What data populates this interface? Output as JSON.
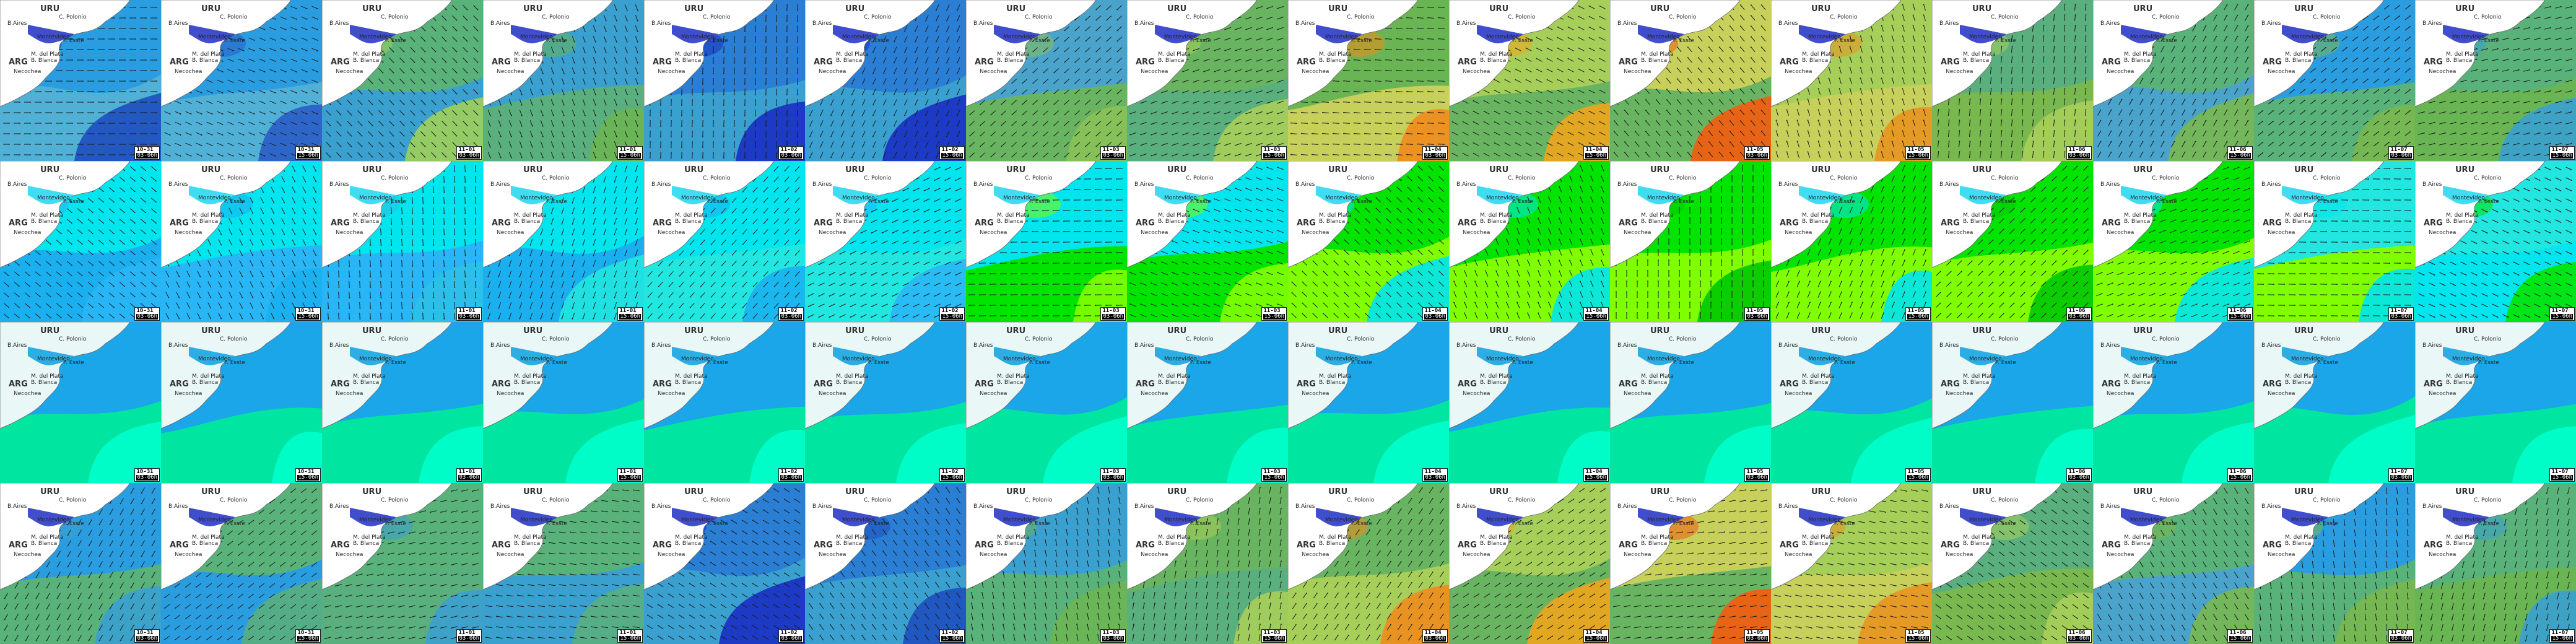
{
  "map": {
    "region_labels": {
      "country_north": "URU",
      "country_south": "ARG",
      "place_1": "C. Polonio",
      "place_2": "B.Aires",
      "place_3": "Montevideo",
      "place_4": "P. Esste",
      "place_5": "M. del Plata",
      "place_6": "Necochea",
      "place_7": "B. Blanca"
    },
    "time_labels": [
      {
        "date": "10-31",
        "hour": "03-06h"
      },
      {
        "date": "10-31",
        "hour": "15-06h"
      },
      {
        "date": "11-01",
        "hour": "03-06h"
      },
      {
        "date": "11-01",
        "hour": "15-06h"
      },
      {
        "date": "11-02",
        "hour": "03-06h"
      },
      {
        "date": "11-02",
        "hour": "15-06h"
      },
      {
        "date": "11-03",
        "hour": "03-06h"
      },
      {
        "date": "11-03",
        "hour": "15-06h"
      },
      {
        "date": "11-04",
        "hour": "03-06h"
      },
      {
        "date": "11-04",
        "hour": "15-06h"
      },
      {
        "date": "11-05",
        "hour": "03-06h"
      },
      {
        "date": "11-05",
        "hour": "15-06h"
      },
      {
        "date": "11-06",
        "hour": "03-06h"
      },
      {
        "date": "11-06",
        "hour": "15-06h"
      },
      {
        "date": "11-07",
        "hour": "03-06h"
      },
      {
        "date": "11-07",
        "hour": "15-06h"
      }
    ],
    "rows": [
      {
        "name": "wind-speed",
        "colors": [
          [
            "#2a9de0",
            "#51b0d6",
            "#1f4fbf"
          ],
          [
            "#2a9de0",
            "#51b0d6",
            "#2a5dc6"
          ],
          [
            "#59b27a",
            "#3aa0d0",
            "#9ecf58"
          ],
          [
            "#3aa0d0",
            "#5aaf7e",
            "#6ab553"
          ],
          [
            "#2a7ed3",
            "#3aa0d0",
            "#1a2fc2"
          ],
          [
            "#2a7ed3",
            "#3aa0d0",
            "#1a2fc2"
          ],
          [
            "#4aa3cb",
            "#69b461",
            "#88c159"
          ],
          [
            "#69b461",
            "#5aaf7e",
            "#a6cf59"
          ],
          [
            "#6ab553",
            "#c6d05a",
            "#f08b1c"
          ],
          [
            "#a6cf59",
            "#69b461",
            "#f0a51c"
          ],
          [
            "#c6d05a",
            "#69b461",
            "#f55b0e"
          ],
          [
            "#a6cf59",
            "#c6d05a",
            "#e8941f"
          ],
          [
            "#5aaf7e",
            "#78b84f",
            "#a6cf59"
          ],
          [
            "#59b27a",
            "#4aa3cb",
            "#78b84f"
          ],
          [
            "#2a9de0",
            "#59b27a",
            "#78b84f"
          ],
          [
            "#59b27a",
            "#6ab553",
            "#3aa0d0"
          ]
        ]
      },
      {
        "name": "wave-height",
        "colors": [
          [
            "#00e5ee",
            "#1ab0f0",
            "#29b6f6"
          ],
          [
            "#00e5ee",
            "#29b6f6",
            "#1ab0f0"
          ],
          [
            "#00e5ee",
            "#29b6f6",
            "#2bc0e8"
          ],
          [
            "#00e5ee",
            "#1ab0f0",
            "#22e6e0"
          ],
          [
            "#00e5ee",
            "#22e6e0",
            "#1ab0f0"
          ],
          [
            "#00e5ee",
            "#22e6e0",
            "#29b6f6"
          ],
          [
            "#00e5ee",
            "#00e400",
            "#7fff00"
          ],
          [
            "#00e5ee",
            "#00e400",
            "#7fff00"
          ],
          [
            "#00e400",
            "#7fff00",
            "#00e5ee"
          ],
          [
            "#00e400",
            "#7fff00",
            "#00e5ee"
          ],
          [
            "#00e400",
            "#7fff00",
            "#00c800"
          ],
          [
            "#00e400",
            "#7fff00",
            "#00e5ee"
          ],
          [
            "#00e400",
            "#7fff00",
            "#00c800"
          ],
          [
            "#00e400",
            "#7fff00",
            "#00e5ee"
          ],
          [
            "#22e6e0",
            "#7fff00",
            "#00e5ee"
          ],
          [
            "#22e6e0",
            "#00e5ee",
            "#00e400"
          ]
        ]
      },
      {
        "name": "sea-temperature",
        "colors": [
          [
            "#1aa6e8",
            "#00e5a0",
            "#00ffcc"
          ],
          [
            "#1aa6e8",
            "#00e5a0",
            "#00ffcc"
          ],
          [
            "#1aa6e8",
            "#00e5a0",
            "#00ffcc"
          ],
          [
            "#1aa6e8",
            "#00e5a0",
            "#00ffcc"
          ],
          [
            "#1aa6e8",
            "#00e5a0",
            "#00ffcc"
          ],
          [
            "#1aa6e8",
            "#00e5a0",
            "#00ffcc"
          ],
          [
            "#1aa6e8",
            "#00e5a0",
            "#00ffcc"
          ],
          [
            "#1aa6e8",
            "#00e5a0",
            "#00ffcc"
          ],
          [
            "#1aa6e8",
            "#00e5a0",
            "#00ffcc"
          ],
          [
            "#1aa6e8",
            "#00e5a0",
            "#00ffcc"
          ],
          [
            "#1aa6e8",
            "#00e5a0",
            "#00ffcc"
          ],
          [
            "#1aa6e8",
            "#00e5a0",
            "#00ffcc"
          ],
          [
            "#1aa6e8",
            "#00e5a0",
            "#00ffcc"
          ],
          [
            "#1aa6e8",
            "#00e5a0",
            "#00ffcc"
          ],
          [
            "#1aa6e8",
            "#00e5a0",
            "#00ffcc"
          ],
          [
            "#1aa6e8",
            "#00e5a0",
            "#00ffcc"
          ]
        ]
      },
      {
        "name": "wind-gust",
        "colors": [
          [
            "#2a9de0",
            "#59b27a",
            "#3aa0d0"
          ],
          [
            "#59b27a",
            "#2a9de0",
            "#5aaf7e"
          ],
          [
            "#59b27a",
            "#5aaf7e",
            "#3aa0d0"
          ],
          [
            "#59b27a",
            "#3aa0d0",
            "#5aaf7e"
          ],
          [
            "#2a7ed3",
            "#3aa0d0",
            "#1a2fc2"
          ],
          [
            "#2a7ed3",
            "#3aa0d0",
            "#1f4fbf"
          ],
          [
            "#3aa0d0",
            "#59b27a",
            "#6ab553"
          ],
          [
            "#69b461",
            "#5aaf7e",
            "#a6cf59"
          ],
          [
            "#69b461",
            "#a6cf59",
            "#f08b1c"
          ],
          [
            "#a6cf59",
            "#69b461",
            "#f0a51c"
          ],
          [
            "#c6d05a",
            "#69b461",
            "#f55b0e"
          ],
          [
            "#a6cf59",
            "#c6d05a",
            "#e8941f"
          ],
          [
            "#5aaf7e",
            "#78b84f",
            "#a6cf59"
          ],
          [
            "#59b27a",
            "#4aa3cb",
            "#78b84f"
          ],
          [
            "#2a9de0",
            "#59b27a",
            "#78b84f"
          ],
          [
            "#59b27a",
            "#6ab553",
            "#3aa0d0"
          ]
        ]
      }
    ]
  }
}
